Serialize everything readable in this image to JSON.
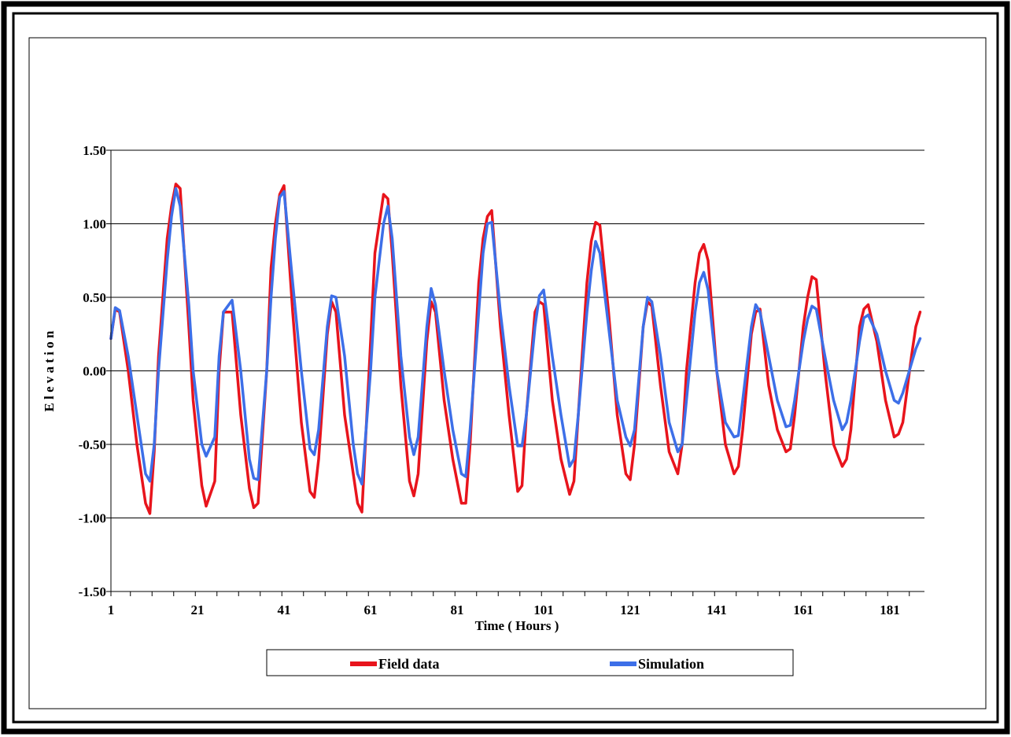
{
  "chart_data": {
    "type": "line",
    "title": "",
    "xlabel": "Time ( Hours )",
    "ylabel": "E l e v a t i o n",
    "ylim": [
      -1.5,
      1.5
    ],
    "yticks": [
      "1.50",
      "1.00",
      "0.50",
      "0.00",
      "-0.50",
      "-1.00",
      "-1.50"
    ],
    "xticks": [
      "1",
      "21",
      "41",
      "61",
      "81",
      "101",
      "121",
      "141",
      "161",
      "181"
    ],
    "grid": "horizontal",
    "legend": "bottom",
    "series": [
      {
        "name": "Field data",
        "color": "#e8141c",
        "x": [
          1,
          2,
          3,
          5,
          7,
          9,
          10,
          11,
          12,
          14,
          15,
          16,
          17,
          19,
          20,
          22,
          23,
          25,
          26,
          27,
          29,
          31,
          33,
          34,
          35,
          37,
          38,
          39,
          40,
          41,
          43,
          45,
          47,
          48,
          49,
          51,
          52,
          53,
          55,
          57,
          58,
          59,
          61,
          62,
          64,
          65,
          66,
          68,
          70,
          71,
          72,
          74,
          75,
          76,
          78,
          80,
          82,
          83,
          84,
          86,
          87,
          88,
          89,
          91,
          93,
          95,
          96,
          97,
          99,
          100,
          101,
          103,
          105,
          107,
          108,
          109,
          111,
          112,
          113,
          114,
          116,
          118,
          120,
          121,
          122,
          124,
          125,
          126,
          128,
          130,
          132,
          133,
          134,
          136,
          137,
          138,
          139,
          141,
          143,
          145,
          146,
          147,
          149,
          150,
          151,
          153,
          155,
          157,
          158,
          159,
          161,
          162,
          163,
          164,
          166,
          168,
          170,
          171,
          172,
          174,
          175,
          176,
          178,
          180,
          182,
          183,
          184,
          186,
          187,
          188
        ],
        "y": [
          0.22,
          0.42,
          0.4,
          0.0,
          -0.5,
          -0.9,
          -0.97,
          -0.55,
          0.1,
          0.9,
          1.12,
          1.27,
          1.24,
          0.3,
          -0.2,
          -0.78,
          -0.92,
          -0.75,
          0.0,
          0.4,
          0.4,
          -0.3,
          -0.8,
          -0.93,
          -0.9,
          0.0,
          0.7,
          1.0,
          1.2,
          1.26,
          0.4,
          -0.35,
          -0.82,
          -0.86,
          -0.6,
          0.25,
          0.47,
          0.4,
          -0.3,
          -0.7,
          -0.9,
          -0.96,
          0.2,
          0.8,
          1.2,
          1.17,
          0.8,
          -0.1,
          -0.75,
          -0.85,
          -0.7,
          0.2,
          0.47,
          0.4,
          -0.2,
          -0.6,
          -0.9,
          -0.9,
          -0.5,
          0.6,
          0.9,
          1.05,
          1.09,
          0.3,
          -0.3,
          -0.82,
          -0.78,
          -0.3,
          0.4,
          0.47,
          0.45,
          -0.2,
          -0.6,
          -0.84,
          -0.75,
          -0.3,
          0.6,
          0.88,
          1.01,
          0.99,
          0.4,
          -0.3,
          -0.7,
          -0.74,
          -0.5,
          0.3,
          0.47,
          0.44,
          -0.1,
          -0.55,
          -0.7,
          -0.5,
          0.0,
          0.6,
          0.8,
          0.86,
          0.75,
          0.0,
          -0.5,
          -0.7,
          -0.65,
          -0.4,
          0.25,
          0.4,
          0.42,
          -0.1,
          -0.4,
          -0.55,
          -0.53,
          -0.3,
          0.3,
          0.5,
          0.64,
          0.62,
          0.0,
          -0.5,
          -0.65,
          -0.6,
          -0.4,
          0.3,
          0.42,
          0.45,
          0.2,
          -0.2,
          -0.45,
          -0.43,
          -0.35,
          0.1,
          0.3,
          0.4
        ]
      },
      {
        "name": "Simulation",
        "color": "#3d6fe8",
        "x": [
          1,
          2,
          3,
          5,
          7,
          9,
          10,
          11,
          12,
          14,
          15,
          16,
          17,
          19,
          20,
          22,
          23,
          25,
          26,
          27,
          29,
          31,
          33,
          34,
          35,
          37,
          38,
          39,
          40,
          41,
          43,
          45,
          47,
          48,
          49,
          51,
          52,
          53,
          55,
          57,
          58,
          59,
          61,
          62,
          64,
          65,
          66,
          68,
          70,
          71,
          72,
          74,
          75,
          76,
          78,
          80,
          82,
          83,
          84,
          86,
          87,
          88,
          89,
          91,
          93,
          95,
          96,
          97,
          99,
          100,
          101,
          103,
          105,
          107,
          108,
          109,
          111,
          112,
          113,
          114,
          116,
          118,
          120,
          121,
          122,
          124,
          125,
          126,
          128,
          130,
          132,
          133,
          134,
          136,
          137,
          138,
          139,
          141,
          143,
          145,
          146,
          147,
          149,
          150,
          151,
          153,
          155,
          157,
          158,
          159,
          161,
          162,
          163,
          164,
          166,
          168,
          170,
          171,
          172,
          174,
          175,
          176,
          178,
          180,
          182,
          183,
          184,
          186,
          187,
          188
        ],
        "y": [
          0.22,
          0.43,
          0.41,
          0.1,
          -0.3,
          -0.7,
          -0.75,
          -0.5,
          0.0,
          0.75,
          1.05,
          1.24,
          1.12,
          0.45,
          0.0,
          -0.5,
          -0.58,
          -0.45,
          0.1,
          0.4,
          0.48,
          0.0,
          -0.6,
          -0.73,
          -0.74,
          0.0,
          0.5,
          0.9,
          1.18,
          1.22,
          0.6,
          0.0,
          -0.53,
          -0.57,
          -0.4,
          0.3,
          0.51,
          0.5,
          0.1,
          -0.5,
          -0.7,
          -0.77,
          0.0,
          0.5,
          1.0,
          1.12,
          0.9,
          0.1,
          -0.45,
          -0.57,
          -0.45,
          0.3,
          0.56,
          0.45,
          0.0,
          -0.4,
          -0.7,
          -0.72,
          -0.4,
          0.4,
          0.8,
          1.0,
          1.01,
          0.4,
          -0.1,
          -0.51,
          -0.51,
          -0.3,
          0.3,
          0.51,
          0.55,
          0.1,
          -0.3,
          -0.65,
          -0.6,
          -0.3,
          0.4,
          0.68,
          0.88,
          0.8,
          0.3,
          -0.2,
          -0.45,
          -0.51,
          -0.4,
          0.3,
          0.5,
          0.47,
          0.1,
          -0.35,
          -0.55,
          -0.5,
          -0.2,
          0.4,
          0.6,
          0.67,
          0.55,
          0.0,
          -0.35,
          -0.45,
          -0.44,
          -0.2,
          0.3,
          0.45,
          0.4,
          0.1,
          -0.2,
          -0.38,
          -0.37,
          -0.2,
          0.2,
          0.35,
          0.44,
          0.42,
          0.1,
          -0.2,
          -0.4,
          -0.35,
          -0.2,
          0.2,
          0.36,
          0.38,
          0.25,
          0.0,
          -0.2,
          -0.22,
          -0.15,
          0.05,
          0.15,
          0.22
        ]
      }
    ]
  }
}
